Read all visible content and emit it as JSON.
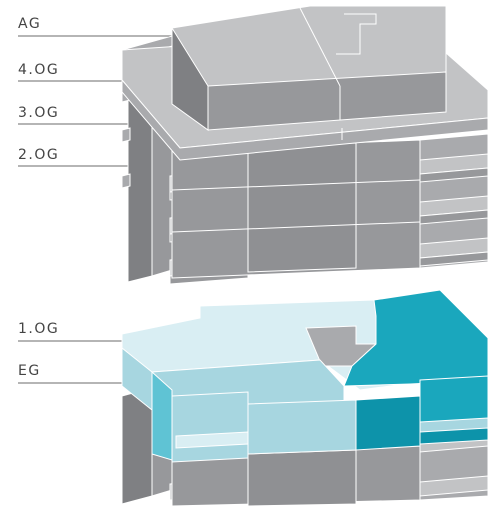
{
  "floor_labels": {
    "ag": "AG",
    "og4": "4.OG",
    "og3": "3.OG",
    "og2": "2.OG",
    "og1": "1.OG",
    "eg": "EG"
  },
  "colors": {
    "grey_top": "#c2c3c5",
    "grey_side": "#a9aaad",
    "grey_front": "#97989b",
    "grey_dark": "#7f8083",
    "teal_light": "#d9eef3",
    "teal_mid": "#a7d6e0",
    "teal_dark": "#1aa7bd",
    "teal_deep": "#0d93aa"
  }
}
